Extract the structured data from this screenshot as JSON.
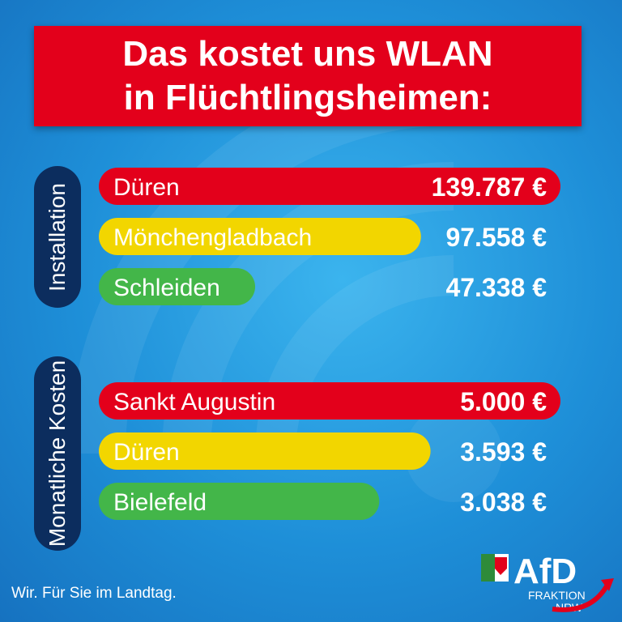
{
  "title": {
    "line1": "Das kostet uns WLAN",
    "line2": "in Flüchtlingsheimen:"
  },
  "colors": {
    "red": "#e3001b",
    "yellow": "#f2d600",
    "green": "#43b649",
    "label_bg": "#0c2d5e"
  },
  "chart_data": [
    {
      "type": "bar",
      "group_label": "Installation",
      "categories": [
        "Düren",
        "Mönchengladbach",
        "Schleiden"
      ],
      "values": [
        139787,
        97558,
        47338
      ],
      "value_labels": [
        "139.787 €",
        "97.558 €",
        "47.338 €"
      ],
      "bar_colors": [
        "#e3001b",
        "#f2d600",
        "#43b649"
      ]
    },
    {
      "type": "bar",
      "group_label": "Monatliche Kosten",
      "categories": [
        "Sankt Augustin",
        "Düren",
        "Bielefeld"
      ],
      "values": [
        5000,
        3593,
        3038
      ],
      "value_labels": [
        "5.000 €",
        "3.593 €",
        "3.038 €"
      ],
      "bar_colors": [
        "#e3001b",
        "#f2d600",
        "#43b649"
      ]
    }
  ],
  "footer": {
    "slogan": "Wir. Für Sie im Landtag.",
    "logo_name": "AfD",
    "logo_sub1": "FRAKTION",
    "logo_sub2": "NRW"
  }
}
